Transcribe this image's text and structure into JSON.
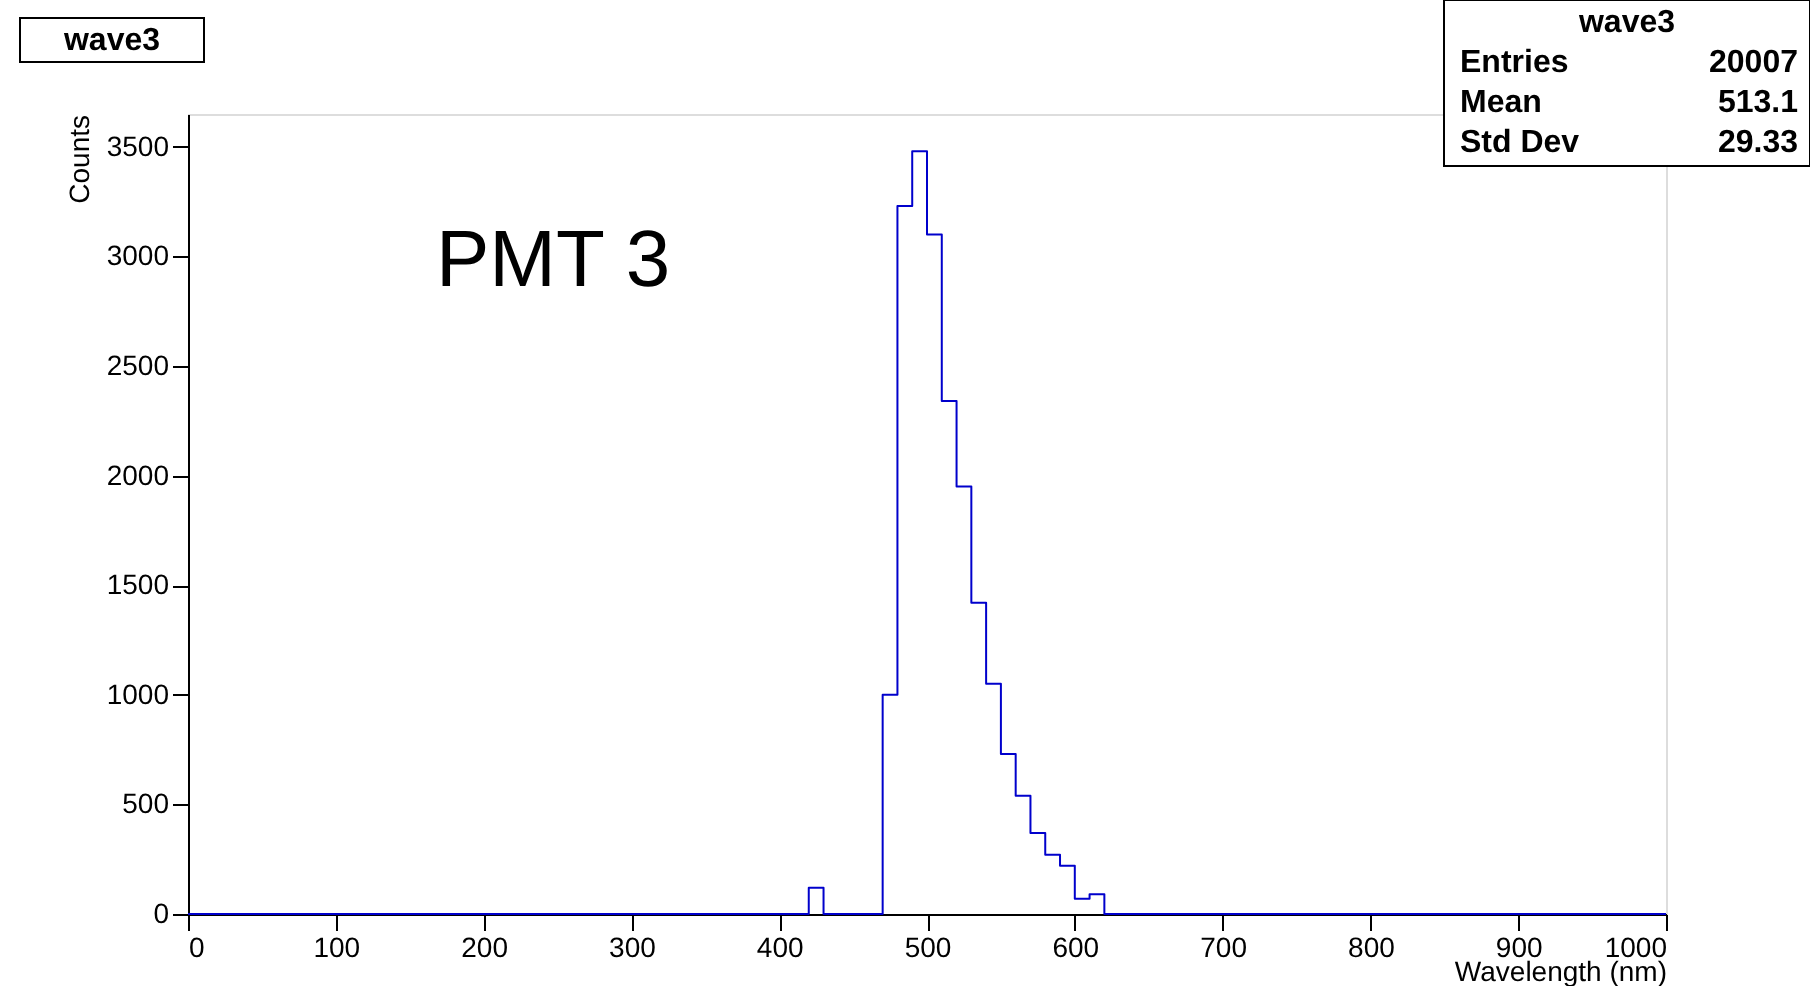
{
  "chart_data": {
    "type": "histogram",
    "title": "wave3",
    "xlabel": "Wavelength (nm)",
    "ylabel": "Counts",
    "color": "#0000cc",
    "bins": [
      0,
      10,
      20,
      30,
      40,
      50,
      60,
      70,
      80,
      90,
      100,
      110,
      120,
      130,
      140,
      150,
      160,
      170,
      180,
      190,
      200,
      210,
      220,
      230,
      240,
      250,
      260,
      270,
      280,
      290,
      300,
      310,
      320,
      330,
      340,
      350,
      360,
      370,
      380,
      390,
      400,
      410,
      420,
      430,
      440,
      450,
      460,
      470,
      480,
      490,
      500,
      510,
      520,
      530,
      540,
      550,
      560,
      570,
      580,
      590,
      600,
      610,
      620,
      630,
      640,
      650,
      660,
      670,
      680,
      690,
      700,
      710,
      720,
      730,
      740,
      750,
      760,
      770,
      780,
      790,
      800,
      810,
      820,
      830,
      840,
      850,
      860,
      870,
      880,
      890,
      900,
      910,
      920,
      930,
      940,
      950,
      960,
      970,
      980,
      990,
      1000
    ],
    "values": [
      0,
      0,
      0,
      0,
      0,
      0,
      0,
      0,
      0,
      0,
      0,
      0,
      0,
      0,
      0,
      0,
      0,
      0,
      0,
      0,
      0,
      0,
      0,
      0,
      0,
      0,
      0,
      0,
      0,
      0,
      0,
      0,
      0,
      0,
      0,
      0,
      0,
      0,
      0,
      0,
      0,
      0,
      120,
      0,
      0,
      0,
      0,
      1000,
      3230,
      3480,
      3100,
      2340,
      1950,
      1420,
      1050,
      730,
      540,
      370,
      270,
      220,
      70,
      90,
      0,
      0,
      0,
      0,
      0,
      0,
      0,
      0,
      0,
      0,
      0,
      0,
      0,
      0,
      0,
      0,
      0,
      0,
      0,
      0,
      0,
      0,
      0,
      0,
      0,
      0,
      0,
      0,
      0,
      0,
      0,
      0,
      0,
      0,
      0,
      0,
      0,
      0
    ],
    "xlim": [
      0,
      1000
    ],
    "ylim": [
      0,
      3650
    ],
    "xticks": [
      0,
      100,
      200,
      300,
      400,
      500,
      600,
      700,
      800,
      900,
      1000
    ],
    "yticks": [
      0,
      500,
      1000,
      1500,
      2000,
      2500,
      3000,
      3500
    ],
    "grid": false,
    "annotations": [
      "PMT 3",
      "wave3",
      "Entries 20007",
      "Mean 513.1",
      "Std Dev 29.33"
    ]
  }
}
